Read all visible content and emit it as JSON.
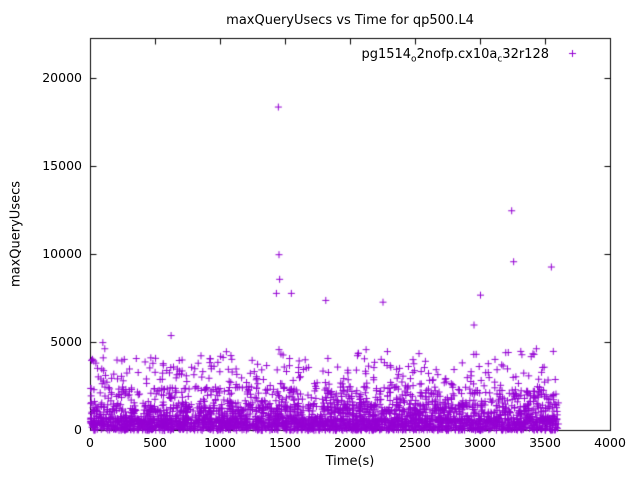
{
  "chart_data": {
    "type": "scatter",
    "title": "maxQueryUsecs vs Time for qp500.L4",
    "xlabel": "Time(s)",
    "ylabel": "maxQueryUsecs",
    "xlim": [
      0,
      4000
    ],
    "ylim": [
      0,
      22300
    ],
    "xticks": [
      0,
      500,
      1000,
      1500,
      2000,
      2500,
      3000,
      3500,
      4000
    ],
    "yticks": [
      0,
      5000,
      10000,
      15000,
      20000
    ],
    "grid": false,
    "legend_position": "top-right-inside",
    "marker": {
      "shape": "plus",
      "color": "#9400d3",
      "size": 7
    },
    "series_name_parts": [
      {
        "t": "pg1514"
      },
      {
        "t": "o",
        "sub": true
      },
      {
        "t": "2nofp.cx10a"
      },
      {
        "t": "c",
        "sub": true
      },
      {
        "t": "32r128"
      }
    ],
    "outliers": [
      [
        15,
        4050
      ],
      [
        25,
        3950
      ],
      [
        60,
        3050
      ],
      [
        95,
        5000
      ],
      [
        110,
        4650
      ],
      [
        300,
        3500
      ],
      [
        420,
        3900
      ],
      [
        620,
        5400
      ],
      [
        700,
        3200
      ],
      [
        850,
        4250
      ],
      [
        950,
        3650
      ],
      [
        1020,
        4150
      ],
      [
        1120,
        3500
      ],
      [
        1260,
        3350
      ],
      [
        1330,
        2900
      ],
      [
        1445,
        18400
      ],
      [
        1450,
        10000
      ],
      [
        1455,
        8600
      ],
      [
        1430,
        7800
      ],
      [
        1545,
        7800
      ],
      [
        1450,
        4600
      ],
      [
        1465,
        4350
      ],
      [
        1600,
        3300
      ],
      [
        1810,
        7400
      ],
      [
        1830,
        3300
      ],
      [
        2060,
        4400
      ],
      [
        2120,
        4600
      ],
      [
        2250,
        7300
      ],
      [
        2310,
        3600
      ],
      [
        2480,
        3300
      ],
      [
        2600,
        3250
      ],
      [
        2950,
        6000
      ],
      [
        3000,
        7700
      ],
      [
        3060,
        3800
      ],
      [
        3240,
        12500
      ],
      [
        3255,
        9600
      ],
      [
        3310,
        4500
      ],
      [
        3390,
        4200
      ],
      [
        3430,
        4650
      ],
      [
        3490,
        3600
      ],
      [
        3545,
        9300
      ],
      [
        3560,
        4500
      ],
      [
        3575,
        2900
      ]
    ],
    "cloud": {
      "seed": 7,
      "n": 3200,
      "x_range": [
        0,
        3600
      ],
      "bands": [
        {
          "p": 0.55,
          "y": [
            0,
            700
          ]
        },
        {
          "p": 0.25,
          "y": [
            700,
            1500
          ]
        },
        {
          "p": 0.13,
          "y": [
            1500,
            2500
          ]
        },
        {
          "p": 0.055,
          "y": [
            2500,
            3700
          ]
        },
        {
          "p": 0.015,
          "y": [
            3700,
            4500
          ]
        }
      ]
    }
  }
}
